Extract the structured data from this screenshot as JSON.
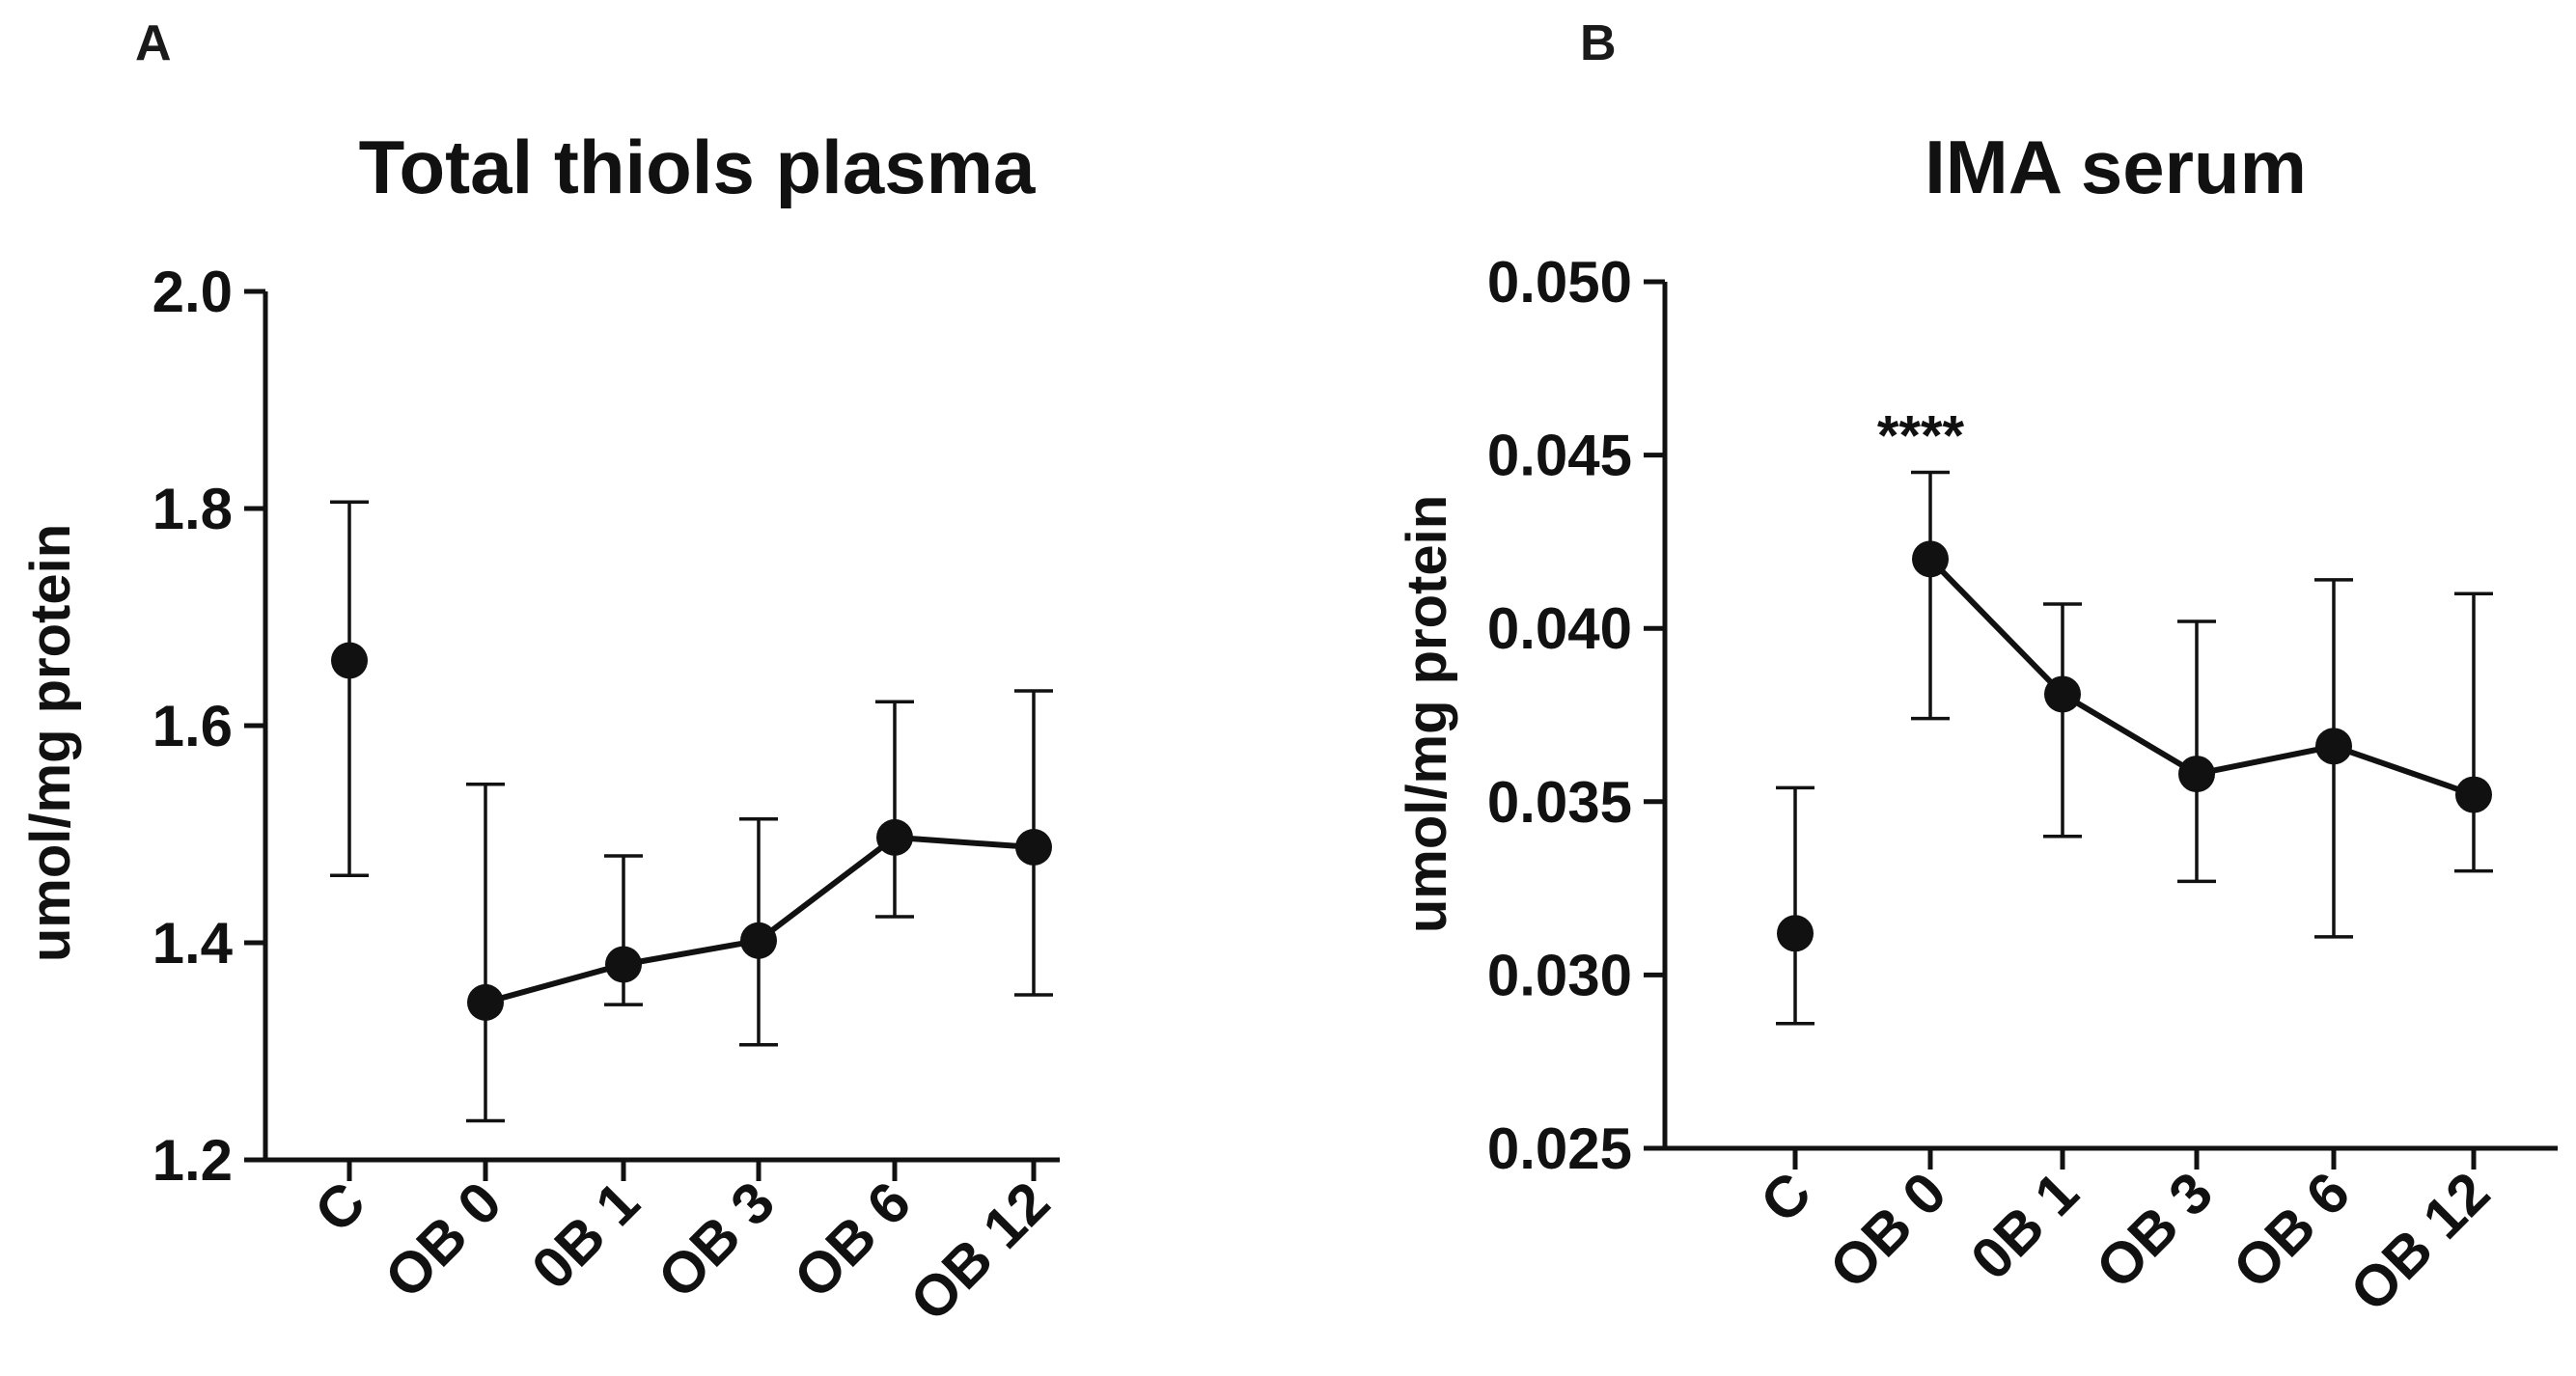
{
  "chart_data": [
    {
      "panel": "A",
      "type": "line",
      "title": "Total thiols plasma",
      "xlabel": "",
      "ylabel": "umol/mg protein",
      "ylim": [
        1.2,
        2.0
      ],
      "yticks": [
        1.2,
        1.4,
        1.6,
        1.8,
        2.0
      ],
      "ytick_labels": [
        "1.2",
        "1.4",
        "1.6",
        "1.8",
        "2.0"
      ],
      "categories": [
        "C",
        "OB 0",
        "0B 1",
        "OB 3",
        "OB 6",
        "OB 12"
      ],
      "series": [
        {
          "name": "mean",
          "values": [
            1.66,
            1.345,
            1.38,
            1.402,
            1.497,
            1.488
          ],
          "err_low": [
            1.462,
            1.236,
            1.343,
            1.306,
            1.424,
            1.352
          ],
          "err_high": [
            1.806,
            1.546,
            1.48,
            1.514,
            1.622,
            1.632
          ],
          "connected_from_index": 1
        }
      ],
      "annotations": []
    },
    {
      "panel": "B",
      "type": "line",
      "title": "IMA serum",
      "xlabel": "",
      "ylabel": "umol/mg protein",
      "ylim": [
        0.025,
        0.05
      ],
      "yticks": [
        0.025,
        0.03,
        0.035,
        0.04,
        0.045,
        0.05
      ],
      "ytick_labels": [
        "0.025",
        "0.030",
        "0.035",
        "0.040",
        "0.045",
        "0.050"
      ],
      "categories": [
        "C",
        "OB 0",
        "0B 1",
        "OB 3",
        "OB 6",
        "OB 12"
      ],
      "series": [
        {
          "name": "mean",
          "values": [
            0.0312,
            0.042,
            0.0381,
            0.0358,
            0.0366,
            0.0352
          ],
          "err_low": [
            0.0286,
            0.0374,
            0.034,
            0.0327,
            0.0311,
            0.033
          ],
          "err_high": [
            0.0354,
            0.0445,
            0.0407,
            0.0402,
            0.0414,
            0.041
          ],
          "connected_from_index": 1
        }
      ],
      "annotations": [
        {
          "category": "OB 0",
          "text": "****"
        }
      ]
    }
  ]
}
